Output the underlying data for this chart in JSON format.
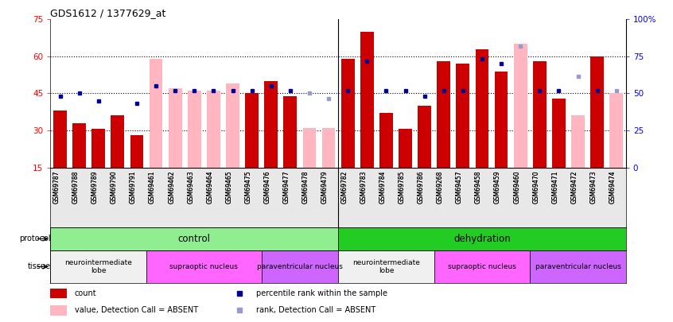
{
  "title": "GDS1612 / 1377629_at",
  "samples": [
    "GSM69787",
    "GSM69788",
    "GSM69789",
    "GSM69790",
    "GSM69791",
    "GSM69461",
    "GSM69462",
    "GSM69463",
    "GSM69464",
    "GSM69465",
    "GSM69475",
    "GSM69476",
    "GSM69477",
    "GSM69478",
    "GSM69479",
    "GSM69782",
    "GSM69783",
    "GSM69784",
    "GSM69785",
    "GSM69786",
    "GSM69268",
    "GSM69457",
    "GSM69458",
    "GSM69459",
    "GSM69460",
    "GSM69470",
    "GSM69471",
    "GSM69472",
    "GSM69473",
    "GSM69474"
  ],
  "bar_values": [
    38,
    33,
    30.5,
    36,
    28,
    59,
    47,
    46,
    46,
    49,
    45,
    50,
    44,
    31,
    31,
    59,
    70,
    37,
    30.5,
    40,
    58,
    57,
    63,
    54,
    65,
    58,
    43,
    36,
    60,
    45
  ],
  "bar_absent": [
    false,
    false,
    false,
    false,
    false,
    true,
    true,
    true,
    true,
    true,
    false,
    false,
    false,
    true,
    true,
    false,
    false,
    false,
    false,
    false,
    false,
    false,
    false,
    false,
    true,
    false,
    false,
    true,
    false,
    true
  ],
  "dot_values": [
    44,
    45,
    42,
    null,
    41,
    48,
    46,
    46,
    46,
    46,
    46,
    48,
    46,
    45,
    43,
    46,
    58,
    46,
    46,
    44,
    46,
    46,
    59,
    57,
    64,
    46,
    46,
    52,
    46,
    46
  ],
  "dot_absent": [
    false,
    false,
    false,
    false,
    false,
    false,
    false,
    false,
    false,
    false,
    false,
    false,
    false,
    true,
    true,
    false,
    false,
    false,
    false,
    false,
    false,
    false,
    false,
    false,
    true,
    false,
    false,
    true,
    false,
    true
  ],
  "ylim": [
    15,
    75
  ],
  "yticks": [
    15,
    30,
    45,
    60,
    75
  ],
  "yticklabels_left": [
    "15",
    "30",
    "45",
    "60",
    "75"
  ],
  "yticklabels_right": [
    "0",
    "25",
    "50",
    "75",
    "100%"
  ],
  "protocol_groups": [
    {
      "label": "control",
      "start": 0,
      "end": 15,
      "color": "#90EE90"
    },
    {
      "label": "dehydration",
      "start": 15,
      "end": 30,
      "color": "#22CC22"
    }
  ],
  "tissue_groups": [
    {
      "label": "neurointermediate\nlobe",
      "start": 0,
      "end": 5,
      "color": "#f0f0f0"
    },
    {
      "label": "supraoptic nucleus",
      "start": 5,
      "end": 11,
      "color": "#FF66FF"
    },
    {
      "label": "paraventricular nucleus",
      "start": 11,
      "end": 15,
      "color": "#CC66FF"
    },
    {
      "label": "neurointermediate\nlobe",
      "start": 15,
      "end": 20,
      "color": "#f0f0f0"
    },
    {
      "label": "supraoptic nucleus",
      "start": 20,
      "end": 25,
      "color": "#FF66FF"
    },
    {
      "label": "paraventricular nucleus",
      "start": 25,
      "end": 30,
      "color": "#CC66FF"
    }
  ],
  "bar_color_present": "#CC0000",
  "bar_color_absent": "#FFB6C1",
  "dot_color_present": "#000099",
  "dot_color_absent": "#9999CC",
  "hline_y": [
    30,
    45,
    60
  ],
  "legend_items": [
    {
      "label": "count",
      "color": "#CC0000",
      "type": "bar"
    },
    {
      "label": "percentile rank within the sample",
      "color": "#000099",
      "type": "dot"
    },
    {
      "label": "value, Detection Call = ABSENT",
      "color": "#FFB6C1",
      "type": "bar"
    },
    {
      "label": "rank, Detection Call = ABSENT",
      "color": "#9999CC",
      "type": "dot"
    }
  ]
}
